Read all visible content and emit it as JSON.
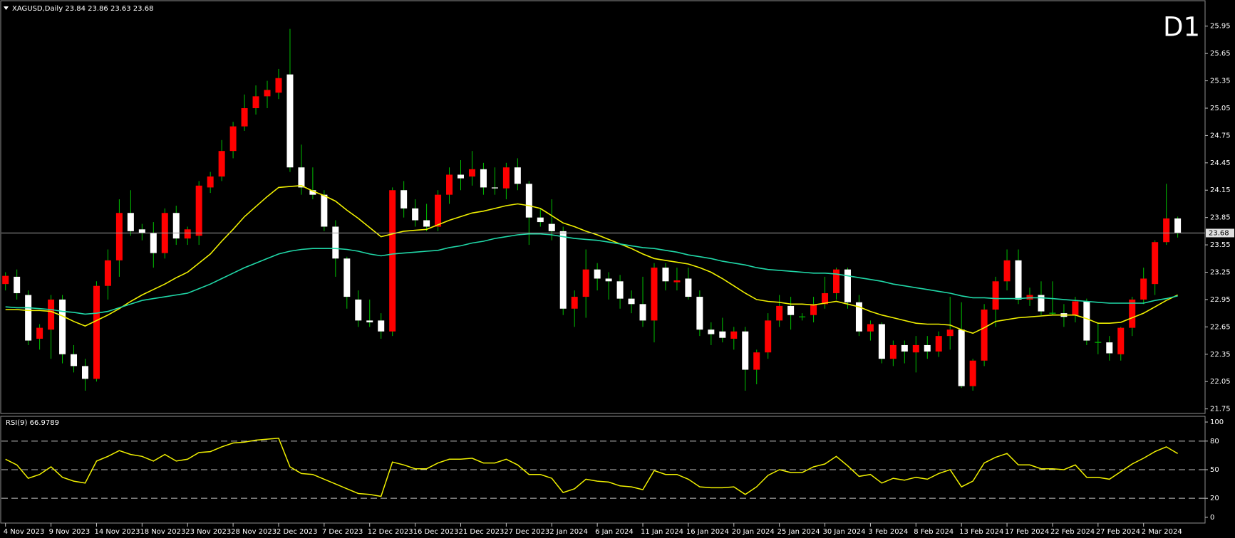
{
  "chart_data": [
    {
      "type": "candlestick",
      "title": "XAGUSD,Daily",
      "timeframe_label": "D1",
      "timeframe_color": "#ff0000",
      "categories": [
        "4 Nov 2023",
        null,
        null,
        null,
        "9 Nov 2023",
        null,
        null,
        null,
        "14 Nov 2023",
        null,
        null,
        null,
        "18 Nov 2023",
        null,
        null,
        null,
        "23 Nov 2023",
        null,
        null,
        null,
        "28 Nov 2023",
        null,
        null,
        null,
        "2 Dec 2023",
        null,
        null,
        null,
        "7 Dec 2023",
        null,
        null,
        null,
        "12 Dec 2023",
        null,
        null,
        null,
        "16 Dec 2023",
        null,
        null,
        null,
        "21 Dec 2023",
        null,
        null,
        null,
        "27 Dec 2023",
        null,
        null,
        null,
        "2 Jan 2024",
        null,
        null,
        null,
        "6 Jan 2024",
        null,
        null,
        null,
        "11 Jan 2024",
        null,
        null,
        null,
        "16 Jan 2024",
        null,
        null,
        null,
        "20 Jan 2024",
        null,
        null,
        null,
        "25 Jan 2024",
        null,
        null,
        null,
        "30 Jan 2024",
        null,
        null,
        null,
        "3 Feb 2024",
        null,
        null,
        null,
        "8 Feb 2024",
        null,
        null,
        null,
        "13 Feb 2024",
        null,
        null,
        null,
        "17 Feb 2024",
        null,
        null,
        null,
        "22 Feb 2024",
        null,
        null,
        null,
        "27 Feb 2024",
        null,
        null,
        null,
        "2 Mar 2024",
        null,
        null,
        null
      ],
      "open": [
        23.12,
        23.2,
        23.0,
        22.52,
        22.62,
        22.95,
        22.35,
        22.22,
        22.08,
        23.1,
        23.38,
        23.9,
        23.72,
        23.68,
        23.46,
        23.9,
        23.62,
        23.65,
        24.18,
        24.3,
        24.58,
        24.85,
        25.05,
        25.18,
        25.22,
        25.42,
        24.4,
        24.15,
        24.1,
        23.75,
        23.4,
        22.95,
        22.72,
        22.72,
        22.6,
        24.15,
        23.95,
        23.82,
        23.75,
        24.1,
        24.32,
        24.3,
        24.38,
        24.18,
        24.17,
        24.4,
        24.22,
        23.85,
        23.78,
        23.7,
        22.85,
        22.98,
        23.28,
        23.18,
        23.15,
        22.96,
        22.9,
        22.72,
        23.3,
        23.14,
        23.18,
        22.98,
        22.62,
        22.6,
        22.52,
        22.6,
        22.18,
        22.37,
        22.72,
        22.88,
        22.76,
        22.78,
        22.9,
        23.02,
        23.28,
        22.92,
        22.6,
        22.68,
        22.3,
        22.45,
        22.37,
        22.45,
        22.38,
        22.55,
        22.62,
        22.0,
        22.28,
        22.84,
        23.15,
        23.38,
        22.95,
        23.0,
        22.8,
        22.8,
        22.78,
        22.93,
        22.48,
        22.48,
        22.35,
        22.64,
        22.95,
        23.12,
        23.58,
        23.84
      ],
      "high": [
        23.25,
        23.28,
        23.05,
        22.68,
        23.0,
        23.0,
        22.45,
        22.3,
        23.15,
        23.5,
        24.05,
        24.15,
        23.78,
        23.8,
        23.95,
        23.98,
        23.75,
        24.25,
        24.35,
        24.7,
        24.9,
        25.2,
        25.3,
        25.35,
        25.48,
        25.92,
        24.65,
        24.4,
        24.15,
        23.82,
        23.42,
        23.05,
        22.95,
        22.8,
        24.18,
        24.25,
        24.05,
        24.0,
        24.15,
        24.4,
        24.48,
        24.58,
        24.45,
        24.4,
        24.45,
        24.5,
        24.25,
        23.95,
        24.05,
        23.75,
        23.05,
        23.5,
        23.35,
        23.25,
        23.22,
        23.05,
        23.2,
        23.35,
        23.35,
        23.3,
        23.3,
        23.05,
        22.7,
        22.75,
        22.65,
        22.65,
        22.4,
        22.8,
        23.0,
        22.98,
        22.8,
        22.98,
        23.2,
        23.3,
        23.3,
        23.0,
        22.72,
        22.7,
        22.5,
        22.5,
        22.55,
        22.55,
        22.6,
        22.98,
        22.92,
        22.3,
        22.9,
        23.2,
        23.5,
        23.5,
        23.08,
        23.15,
        23.15,
        22.9,
        22.98,
        22.96,
        22.7,
        22.55,
        22.65,
        22.98,
        23.3,
        23.6,
        24.22,
        23.86
      ],
      "low": [
        23.05,
        22.95,
        22.45,
        22.4,
        22.3,
        22.25,
        22.15,
        21.95,
        22.05,
        22.95,
        23.2,
        23.65,
        23.6,
        23.3,
        23.4,
        23.55,
        23.55,
        23.55,
        24.12,
        24.25,
        24.5,
        24.8,
        24.98,
        25.05,
        25.15,
        24.35,
        24.1,
        24.05,
        23.7,
        23.2,
        22.85,
        22.65,
        22.65,
        22.52,
        22.55,
        23.85,
        23.75,
        23.7,
        23.7,
        24.0,
        24.15,
        24.2,
        24.1,
        24.1,
        24.05,
        24.15,
        23.55,
        23.75,
        23.6,
        22.78,
        22.65,
        22.75,
        23.05,
        22.95,
        22.85,
        22.8,
        22.65,
        22.48,
        23.05,
        23.05,
        22.95,
        22.55,
        22.45,
        22.48,
        22.4,
        21.95,
        22.02,
        22.3,
        22.65,
        22.62,
        22.72,
        22.7,
        22.85,
        22.95,
        22.85,
        22.55,
        22.5,
        22.25,
        22.22,
        22.25,
        22.15,
        22.3,
        22.32,
        22.4,
        21.98,
        21.95,
        22.22,
        22.65,
        23.05,
        22.9,
        22.88,
        22.78,
        22.78,
        22.65,
        22.7,
        22.45,
        22.35,
        22.28,
        22.28,
        22.55,
        22.9,
        23.0,
        23.55,
        23.63
      ],
      "close": [
        23.21,
        23.02,
        22.5,
        22.64,
        22.95,
        22.35,
        22.22,
        22.08,
        23.1,
        23.38,
        23.9,
        23.7,
        23.68,
        23.46,
        23.9,
        23.62,
        23.72,
        24.2,
        24.3,
        24.58,
        24.85,
        25.05,
        25.18,
        25.25,
        25.38,
        24.4,
        24.18,
        24.1,
        23.75,
        23.4,
        22.98,
        22.72,
        22.7,
        22.6,
        24.15,
        23.95,
        23.82,
        23.75,
        24.1,
        24.32,
        24.28,
        24.38,
        24.18,
        24.17,
        24.4,
        24.22,
        23.85,
        23.8,
        23.7,
        22.85,
        22.98,
        23.28,
        23.18,
        23.15,
        22.96,
        22.9,
        22.72,
        23.3,
        23.15,
        23.16,
        22.98,
        22.62,
        22.57,
        22.53,
        22.6,
        22.18,
        22.37,
        22.72,
        22.88,
        22.78,
        22.76,
        22.9,
        23.02,
        23.28,
        22.92,
        22.6,
        22.68,
        22.3,
        22.45,
        22.38,
        22.45,
        22.38,
        22.55,
        22.62,
        22.0,
        22.28,
        22.84,
        23.15,
        23.38,
        22.95,
        23.0,
        22.82,
        22.8,
        22.76,
        22.93,
        22.5,
        22.48,
        22.36,
        22.64,
        22.95,
        23.18,
        23.58,
        23.84,
        23.68
      ],
      "up_color": "#ff0000",
      "down_color": "#ffffff",
      "wick_color": "#00c000",
      "doji_color": "#00c000",
      "lines": [
        {
          "color": "#f0f000",
          "values": [
            22.84,
            22.84,
            22.83,
            22.83,
            22.82,
            22.77,
            22.71,
            22.66,
            22.72,
            22.78,
            22.85,
            22.93,
            23.0,
            23.06,
            23.12,
            23.19,
            23.25,
            23.35,
            23.45,
            23.59,
            23.72,
            23.86,
            23.97,
            24.08,
            24.18,
            24.19,
            24.2,
            24.14,
            24.09,
            24.03,
            23.93,
            23.84,
            23.74,
            23.64,
            23.67,
            23.7,
            23.71,
            23.72,
            23.77,
            23.82,
            23.86,
            23.9,
            23.92,
            23.95,
            23.98,
            24.0,
            23.98,
            23.95,
            23.87,
            23.79,
            23.75,
            23.7,
            23.66,
            23.61,
            23.56,
            23.51,
            23.45,
            23.4,
            23.38,
            23.36,
            23.34,
            23.3,
            23.25,
            23.18,
            23.1,
            23.02,
            22.95,
            22.93,
            22.92,
            22.9,
            22.9,
            22.89,
            22.91,
            22.93,
            22.9,
            22.87,
            22.82,
            22.78,
            22.75,
            22.72,
            22.69,
            22.68,
            22.68,
            22.67,
            22.62,
            22.58,
            22.64,
            22.71,
            22.73,
            22.75,
            22.76,
            22.77,
            22.78,
            22.78,
            22.78,
            22.74,
            22.69,
            22.69,
            22.7,
            22.75,
            22.8,
            22.87,
            22.94,
            23.0
          ]
        },
        {
          "color": "#20d8a8",
          "values": [
            22.87,
            22.86,
            22.86,
            22.85,
            22.84,
            22.82,
            22.81,
            22.79,
            22.8,
            22.82,
            22.86,
            22.9,
            22.94,
            22.96,
            22.98,
            23.0,
            23.02,
            23.07,
            23.12,
            23.18,
            23.24,
            23.3,
            23.35,
            23.4,
            23.45,
            23.48,
            23.5,
            23.51,
            23.51,
            23.51,
            23.5,
            23.48,
            23.45,
            23.43,
            23.45,
            23.46,
            23.47,
            23.48,
            23.49,
            23.52,
            23.54,
            23.57,
            23.59,
            23.62,
            23.64,
            23.66,
            23.67,
            23.67,
            23.66,
            23.64,
            23.62,
            23.61,
            23.6,
            23.58,
            23.56,
            23.54,
            23.52,
            23.51,
            23.49,
            23.47,
            23.44,
            23.42,
            23.4,
            23.37,
            23.35,
            23.33,
            23.3,
            23.28,
            23.27,
            23.26,
            23.25,
            23.24,
            23.24,
            23.23,
            23.21,
            23.19,
            23.17,
            23.15,
            23.12,
            23.1,
            23.08,
            23.06,
            23.04,
            23.02,
            22.99,
            22.97,
            22.97,
            22.96,
            22.96,
            22.96,
            22.97,
            22.97,
            22.96,
            22.95,
            22.94,
            22.93,
            22.92,
            22.91,
            22.91,
            22.91,
            22.91,
            22.94,
            22.96,
            22.99
          ]
        }
      ],
      "price_line_color": "#a0a0a0",
      "ylim": [
        21.7,
        26.19
      ],
      "yticks": [
        21.75,
        22.05,
        22.35,
        22.65,
        22.95,
        23.25,
        23.55,
        23.85,
        24.15,
        24.45,
        24.75,
        25.05,
        25.35,
        25.65,
        25.95
      ]
    },
    {
      "type": "line",
      "title": "RSI(9)",
      "series": [
        {
          "color": "#f0f000",
          "values": [
            61,
            55,
            41,
            45,
            53,
            42,
            38,
            36,
            59,
            64,
            70,
            66,
            64,
            59,
            66,
            59,
            61,
            68,
            69,
            74,
            78,
            79,
            81,
            82,
            83,
            53,
            46,
            45,
            40,
            35,
            30,
            25,
            24,
            22,
            58,
            55,
            51,
            51,
            57,
            61,
            61,
            62,
            57,
            57,
            61,
            55,
            45,
            45,
            41,
            26,
            30,
            40,
            38,
            37,
            33,
            32,
            29,
            49,
            45,
            45,
            40,
            32,
            31,
            31,
            32,
            24,
            32,
            44,
            50,
            47,
            47,
            53,
            56,
            64,
            54,
            43,
            45,
            36,
            41,
            39,
            42,
            40,
            46,
            50,
            32,
            38,
            57,
            63,
            67,
            55,
            55,
            51,
            51,
            50,
            55,
            42,
            42,
            40,
            48,
            56,
            62,
            69,
            74,
            66.9789
          ]
        }
      ],
      "ylim": [
        -6,
        106
      ],
      "yticks": [
        0,
        20,
        50,
        80,
        100
      ],
      "levels": [
        20,
        50,
        80
      ]
    }
  ]
}
